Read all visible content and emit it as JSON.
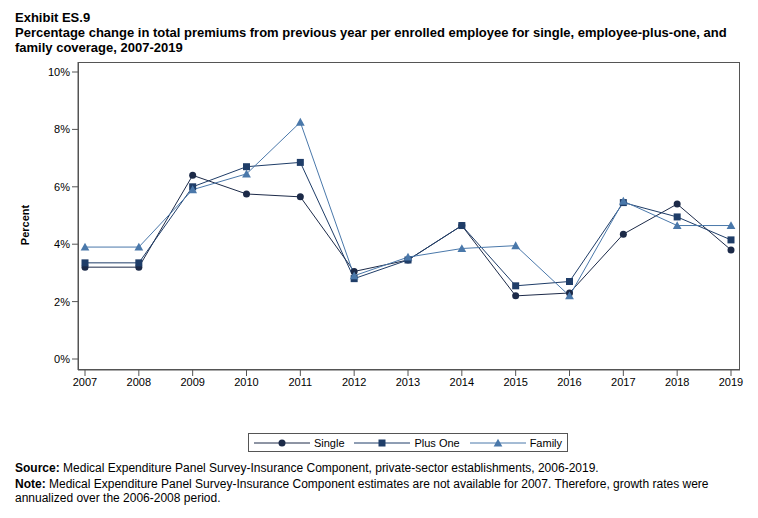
{
  "chart_data": {
    "type": "line",
    "title": "Exhibit ES.9",
    "subtitle": "Percentage change in total premiums from previous year per enrolled employee for single, employee-plus-one, and family coverage,  2007-2019",
    "y_label": "Percent",
    "categories": [
      "2007",
      "2008",
      "2009",
      "2010",
      "2011",
      "2012",
      "2013",
      "2014",
      "2015",
      "2016",
      "2017",
      "2018",
      "2019"
    ],
    "series": [
      {
        "name": "Single",
        "color": "#1c2a48",
        "marker": "circle",
        "values": [
          3.2,
          3.2,
          6.4,
          5.75,
          5.65,
          3.05,
          3.45,
          4.65,
          2.2,
          2.3,
          4.35,
          5.4,
          3.8
        ]
      },
      {
        "name": "Plus One",
        "color": "#1f3d68",
        "marker": "square",
        "values": [
          3.35,
          3.35,
          6.0,
          6.7,
          6.85,
          2.8,
          3.45,
          4.65,
          2.55,
          2.7,
          5.45,
          4.95,
          4.15
        ]
      },
      {
        "name": "Family",
        "color": "#4a78aa",
        "marker": "triangle",
        "values": [
          3.9,
          3.9,
          5.9,
          6.45,
          8.25,
          2.9,
          3.55,
          3.85,
          3.95,
          2.2,
          5.5,
          4.65,
          4.65
        ]
      }
    ],
    "ylim": [
      0,
      10
    ],
    "yticks": [
      {
        "value": 0,
        "label": "0%"
      },
      {
        "value": 2,
        "label": "2%"
      },
      {
        "value": 4,
        "label": "4%"
      },
      {
        "value": 6,
        "label": "6%"
      },
      {
        "value": 8,
        "label": "8%"
      },
      {
        "value": 10,
        "label": "10%"
      }
    ],
    "legend": "bottom",
    "annotations": [
      {
        "label": "Source:",
        "text": "Medical Expenditure Panel Survey-Insurance Component, private-sector establishments, 2006-2019."
      },
      {
        "label": "Note:",
        "text": "Medical Expenditure Panel Survey-Insurance Component estimates are not available for 2007. Therefore, growth rates were annualized over the 2006-2008 period."
      }
    ]
  }
}
